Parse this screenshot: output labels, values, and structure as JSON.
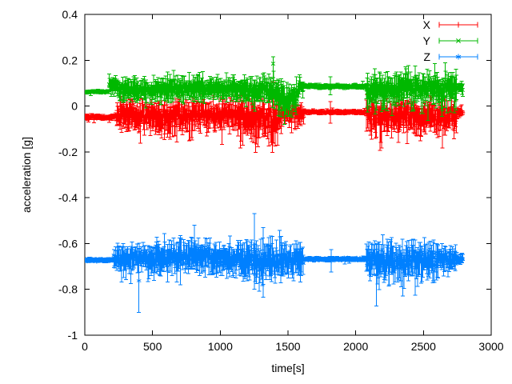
{
  "chart_data": {
    "type": "scatter-errorbar",
    "title": "",
    "xlabel": "time[s]",
    "ylabel": "acceleration [g]",
    "xlim": [
      0,
      3000
    ],
    "ylim": [
      -1,
      0.4
    ],
    "xticks": [
      0,
      500,
      1000,
      1500,
      2000,
      2500,
      3000
    ],
    "xtick_labels": [
      "0",
      "500",
      "1000",
      "1500",
      "2000",
      "2500",
      "3000"
    ],
    "yticks": [
      -1,
      -0.8,
      -0.6,
      -0.4,
      -0.2,
      0,
      0.2,
      0.4
    ],
    "ytick_labels": [
      "-1",
      "-0.8",
      "-0.6",
      "-0.4",
      "-0.2",
      "0",
      "0.2",
      "0.4"
    ],
    "grid": false,
    "tick_mirror": true,
    "background": "#ffffff",
    "axis_color": "#000000",
    "text_color": "#000000",
    "legend": {
      "position": "top-right-inside",
      "box": false
    },
    "data_end_time_s": 2790,
    "sample_interval_s": 4,
    "series": [
      {
        "name": "X",
        "color": "#ff0000",
        "marker": "plus",
        "description": "X acceleration: ~-0.05 g quiet (0-235 s, 1615-2080 s), noisy bursts -0.12..0.02 g with downward fringes to -0.19 g",
        "segments": [
          {
            "t0": 0,
            "t1": 235,
            "c0": -0.048,
            "c1": -0.048,
            "band": 0.006,
            "bar": 0.01,
            "p": 0.03,
            "xu": 0.01,
            "xd": 0.02
          },
          {
            "t0": 235,
            "t1": 520,
            "c0": -0.042,
            "c1": -0.042,
            "band": 0.032,
            "bar": 0.05,
            "p": 0.18,
            "xu": 0.02,
            "xd": 0.07
          },
          {
            "t0": 520,
            "t1": 780,
            "c0": -0.048,
            "c1": -0.048,
            "band": 0.036,
            "bar": 0.055,
            "p": 0.2,
            "xu": 0.02,
            "xd": 0.08
          },
          {
            "t0": 780,
            "t1": 1150,
            "c0": -0.04,
            "c1": -0.04,
            "band": 0.034,
            "bar": 0.05,
            "p": 0.18,
            "xu": 0.025,
            "xd": 0.07
          },
          {
            "t0": 1150,
            "t1": 1430,
            "c0": -0.058,
            "c1": -0.058,
            "band": 0.046,
            "bar": 0.06,
            "p": 0.25,
            "xu": 0.03,
            "xd": 0.09
          },
          {
            "t0": 1430,
            "t1": 1615,
            "c0": -0.032,
            "c1": -0.032,
            "band": 0.028,
            "bar": 0.04,
            "p": 0.15,
            "xu": 0.02,
            "xd": 0.06
          },
          {
            "t0": 1615,
            "t1": 2080,
            "c0": -0.026,
            "c1": -0.026,
            "band": 0.005,
            "bar": 0.009,
            "p": 0.03,
            "xu": 0.01,
            "xd": 0.015
          },
          {
            "t0": 2080,
            "t1": 2460,
            "c0": -0.042,
            "c1": -0.042,
            "band": 0.038,
            "bar": 0.055,
            "p": 0.2,
            "xu": 0.025,
            "xd": 0.08
          },
          {
            "t0": 2460,
            "t1": 2745,
            "c0": -0.046,
            "c1": -0.046,
            "band": 0.042,
            "bar": 0.055,
            "p": 0.2,
            "xu": 0.03,
            "xd": 0.08
          },
          {
            "t0": 2745,
            "t1": 2790,
            "c0": -0.028,
            "c1": -0.03,
            "band": 0.012,
            "bar": 0.018,
            "p": 0.05,
            "xu": 0.01,
            "xd": 0.02
          }
        ],
        "events": [
          {
            "t": 1232,
            "lo": -0.12,
            "hi": 0.065
          },
          {
            "t": 1390,
            "lo": -0.16,
            "hi": 0.105
          },
          {
            "t": 1814,
            "lo": -0.075,
            "hi": 0.02
          }
        ]
      },
      {
        "name": "Y",
        "color": "#00b800",
        "marker": "times",
        "description": "Y acceleration: ~+0.06 g quiet start, noisy band 0.02..0.12 g, dips to -0.05 g near 1430-1565 s and 2080-2745 s, spike to 0.215 g at ~1390 s",
        "segments": [
          {
            "t0": 0,
            "t1": 180,
            "c0": 0.062,
            "c1": 0.062,
            "band": 0.004,
            "bar": 0.007,
            "p": 0.03,
            "xu": 0.01,
            "xd": 0.008
          },
          {
            "t0": 180,
            "t1": 240,
            "c0": 0.09,
            "c1": 0.085,
            "band": 0.018,
            "bar": 0.03,
            "p": 0.1,
            "xu": 0.03,
            "xd": 0.02
          },
          {
            "t0": 240,
            "t1": 700,
            "c0": 0.072,
            "c1": 0.072,
            "band": 0.025,
            "bar": 0.04,
            "p": 0.15,
            "xu": 0.035,
            "xd": 0.03
          },
          {
            "t0": 700,
            "t1": 1150,
            "c0": 0.075,
            "c1": 0.075,
            "band": 0.026,
            "bar": 0.04,
            "p": 0.15,
            "xu": 0.04,
            "xd": 0.035
          },
          {
            "t0": 1150,
            "t1": 1430,
            "c0": 0.07,
            "c1": 0.07,
            "band": 0.03,
            "bar": 0.045,
            "p": 0.17,
            "xu": 0.045,
            "xd": 0.05
          },
          {
            "t0": 1430,
            "t1": 1565,
            "c0": 0.038,
            "c1": 0.038,
            "band": 0.045,
            "bar": 0.05,
            "p": 0.2,
            "xu": 0.045,
            "xd": 0.06
          },
          {
            "t0": 1565,
            "t1": 1615,
            "c0": 0.075,
            "c1": 0.08,
            "band": 0.02,
            "bar": 0.03,
            "p": 0.1,
            "xu": 0.03,
            "xd": 0.03
          },
          {
            "t0": 1615,
            "t1": 2080,
            "c0": 0.086,
            "c1": 0.086,
            "band": 0.005,
            "bar": 0.009,
            "p": 0.03,
            "xu": 0.015,
            "xd": 0.01
          },
          {
            "t0": 2080,
            "t1": 2320,
            "c0": 0.07,
            "c1": 0.07,
            "band": 0.038,
            "bar": 0.05,
            "p": 0.2,
            "xu": 0.04,
            "xd": 0.07
          },
          {
            "t0": 2320,
            "t1": 2745,
            "c0": 0.078,
            "c1": 0.078,
            "band": 0.038,
            "bar": 0.05,
            "p": 0.2,
            "xu": 0.045,
            "xd": 0.08
          },
          {
            "t0": 2745,
            "t1": 2790,
            "c0": 0.08,
            "c1": 0.08,
            "band": 0.014,
            "bar": 0.02,
            "p": 0.05,
            "xu": 0.02,
            "xd": 0.02
          }
        ],
        "events": [
          {
            "t": 655,
            "lo": 0.06,
            "hi": 0.155
          },
          {
            "t": 1390,
            "lo": 0.1,
            "hi": 0.215,
            "m": 0.185
          },
          {
            "t": 1814,
            "lo": 0.05,
            "hi": 0.127
          },
          {
            "t": 2145,
            "lo": -0.035,
            "hi": 0.12
          }
        ]
      },
      {
        "name": "Z",
        "color": "#0080ff",
        "marker": "asterisk",
        "description": "Z acceleration: ~-0.67 g baseline, noisy band -0.74..-0.60 g, spike down to -0.90 g at ~400 s and up to -0.47 g at ~1252 s",
        "segments": [
          {
            "t0": 0,
            "t1": 215,
            "c0": -0.672,
            "c1": -0.672,
            "band": 0.005,
            "bar": 0.008,
            "p": 0.03,
            "xu": 0.008,
            "xd": 0.012
          },
          {
            "t0": 215,
            "t1": 520,
            "c0": -0.67,
            "c1": -0.67,
            "band": 0.028,
            "bar": 0.05,
            "p": 0.15,
            "xu": 0.04,
            "xd": 0.06
          },
          {
            "t0": 520,
            "t1": 780,
            "c0": -0.66,
            "c1": -0.66,
            "band": 0.034,
            "bar": 0.055,
            "p": 0.15,
            "xu": 0.045,
            "xd": 0.06
          },
          {
            "t0": 780,
            "t1": 900,
            "c0": -0.652,
            "c1": -0.652,
            "band": 0.035,
            "bar": 0.055,
            "p": 0.15,
            "xu": 0.04,
            "xd": 0.06
          },
          {
            "t0": 900,
            "t1": 1150,
            "c0": -0.668,
            "c1": -0.668,
            "band": 0.035,
            "bar": 0.055,
            "p": 0.15,
            "xu": 0.045,
            "xd": 0.065
          },
          {
            "t0": 1150,
            "t1": 1460,
            "c0": -0.676,
            "c1": -0.676,
            "band": 0.046,
            "bar": 0.06,
            "p": 0.2,
            "xu": 0.055,
            "xd": 0.08
          },
          {
            "t0": 1460,
            "t1": 1615,
            "c0": -0.67,
            "c1": -0.67,
            "band": 0.034,
            "bar": 0.05,
            "p": 0.15,
            "xu": 0.04,
            "xd": 0.06
          },
          {
            "t0": 1615,
            "t1": 2080,
            "c0": -0.668,
            "c1": -0.668,
            "band": 0.005,
            "bar": 0.008,
            "p": 0.03,
            "xu": 0.01,
            "xd": 0.012
          },
          {
            "t0": 2080,
            "t1": 2320,
            "c0": -0.676,
            "c1": -0.676,
            "band": 0.04,
            "bar": 0.058,
            "p": 0.2,
            "xu": 0.05,
            "xd": 0.08
          },
          {
            "t0": 2320,
            "t1": 2610,
            "c0": -0.67,
            "c1": -0.67,
            "band": 0.042,
            "bar": 0.06,
            "p": 0.2,
            "xu": 0.05,
            "xd": 0.075
          },
          {
            "t0": 2610,
            "t1": 2745,
            "c0": -0.665,
            "c1": -0.665,
            "band": 0.026,
            "bar": 0.04,
            "p": 0.12,
            "xu": 0.035,
            "xd": 0.05
          },
          {
            "t0": 2745,
            "t1": 2790,
            "c0": -0.668,
            "c1": -0.668,
            "band": 0.012,
            "bar": 0.018,
            "p": 0.05,
            "xu": 0.015,
            "xd": 0.02
          }
        ],
        "events": [
          {
            "t": 400,
            "lo": -0.9,
            "hi": -0.625
          },
          {
            "t": 705,
            "lo": -0.78,
            "hi": -0.565
          },
          {
            "t": 1252,
            "lo": -0.8,
            "hi": -0.47
          },
          {
            "t": 1318,
            "lo": -0.835,
            "hi": -0.53
          },
          {
            "t": 1820,
            "lo": -0.725,
            "hi": -0.627
          },
          {
            "t": 2152,
            "lo": -0.872,
            "hi": -0.6
          },
          {
            "t": 2440,
            "lo": -0.826,
            "hi": -0.585
          }
        ]
      }
    ]
  }
}
